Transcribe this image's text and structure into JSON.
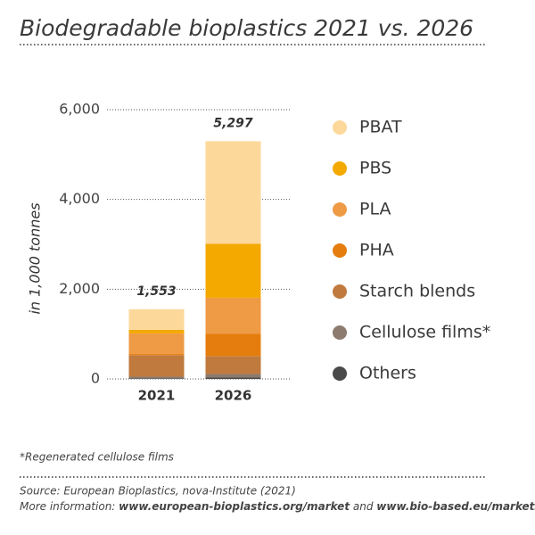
{
  "chart_data": {
    "type": "stacked_bar",
    "title": "Biodegradable bioplastics 2021 vs. 2026",
    "y_label": "in 1,000 tonnes",
    "categories": [
      "2021",
      "2026"
    ],
    "series": [
      {
        "name": "PBAT",
        "color": "#fcd89a",
        "values": [
          458,
          2287
        ]
      },
      {
        "name": "PBS",
        "color": "#f4a900",
        "values": [
          80,
          1200
        ]
      },
      {
        "name": "PLA",
        "color": "#ef9a45",
        "values": [
          460,
          800
        ]
      },
      {
        "name": "PHA",
        "color": "#e57d0e",
        "values": [
          25,
          500
        ]
      },
      {
        "name": "Starch blends",
        "color": "#c07a3d",
        "values": [
          480,
          400
        ]
      },
      {
        "name": "Cellulose films*",
        "color": "#8c7b6e",
        "values": [
          35,
          80
        ]
      },
      {
        "name": "Others",
        "color": "#4a4a4a",
        "values": [
          15,
          30
        ]
      }
    ],
    "totals": [
      1553,
      5297
    ],
    "total_labels": [
      "1,553",
      "5,297"
    ],
    "ylim": [
      0,
      6000
    ],
    "yticks": [
      0,
      {
        "value": 2000,
        "label": "2,000"
      },
      {
        "value": 4000,
        "label": "4,000"
      },
      {
        "value": 6000,
        "label": "6,000"
      }
    ],
    "grid": true,
    "legend": "right",
    "footnote": "*Regenerated cellulose films",
    "source": "Source: European Bioplastics, nova-Institute (2021)",
    "more_info": {
      "prefix": "More information:",
      "link1": "www.european-bioplastics.org/market",
      "joiner": "and",
      "link2": "www.bio-based.eu/markets"
    }
  }
}
